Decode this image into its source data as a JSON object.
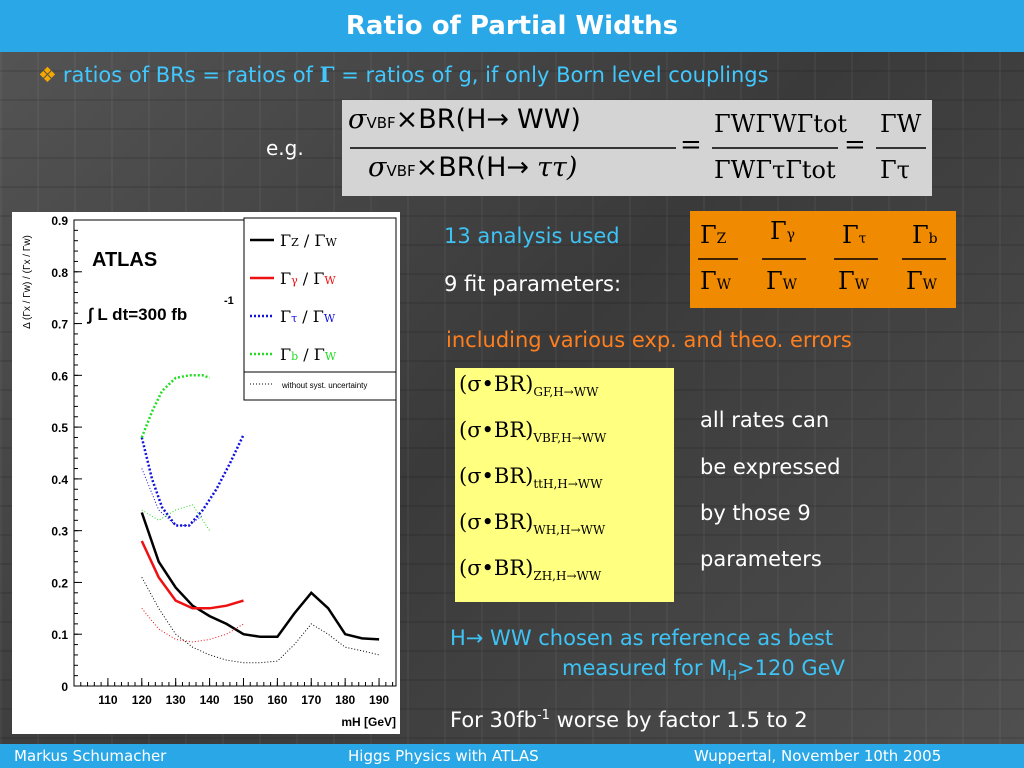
{
  "title": "Ratio of Partial Widths",
  "bullet": {
    "text_a": "ratios of BRs  = ratios of ",
    "gamma": "Γ",
    "text_b": " = ratios of g, if only Born level couplings"
  },
  "eg": "e.g.",
  "formula": {
    "num_sigma": "σ",
    "num_sub": "VBF",
    "num_rest": "×BR(H",
    "arrow": "→",
    "num_ww": "WW)",
    "den_sigma": "σ",
    "den_sub": "VBF",
    "den_rest": "×BR(H",
    "den_tautau": "ττ)",
    "mid_num": "ΓWΓWΓtot",
    "mid_den": "ΓWΓτΓtot",
    "right_num": "ΓW",
    "right_den": "Γτ",
    "eq": "="
  },
  "analysis": "13 analysis used",
  "fit_params": "9 fit parameters:",
  "ratios": [
    {
      "num": "Γ",
      "num_sub": "Z",
      "den": "Γ",
      "den_sub": "W"
    },
    {
      "num": "Γ",
      "num_sub": "γ",
      "den": "Γ",
      "den_sub": "W"
    },
    {
      "num": "Γ",
      "num_sub": "τ",
      "den": "Γ",
      "den_sub": "W"
    },
    {
      "num": "Γ",
      "num_sub": "b",
      "den": "Γ",
      "den_sub": "W"
    }
  ],
  "errors": "including various exp. and theo. errors",
  "rates": [
    {
      "main": "(σ•BR)",
      "sub": "GF,H→WW"
    },
    {
      "main": "(σ•BR)",
      "sub": "VBF,H→WW"
    },
    {
      "main": "(σ•BR)",
      "sub": "ttH,H→WW"
    },
    {
      "main": "(σ•BR)",
      "sub": "WH,H→WW"
    },
    {
      "main": "(σ•BR)",
      "sub": "ZH,H→WW"
    }
  ],
  "rates_text": [
    "all rates can",
    "be expressed",
    "by  those 9",
    "parameters"
  ],
  "reference": {
    "line1": "H→ WW chosen as reference as best",
    "line2_a": "measured for M",
    "line2_sub": "H",
    "line2_b": ">120 GeV"
  },
  "worse": {
    "a": "For 30fb",
    "sup": "-1",
    "b": " worse by factor 1.5 to 2"
  },
  "footer": {
    "left": "Markus  Schumacher",
    "center": "Higgs Physics  with ATLAS",
    "right": "Wuppertal, November 10th 2005"
  },
  "colors": {
    "accent": "#2aa7e6",
    "cyan_text": "#3ec3f5",
    "orange": "#f08a00",
    "yellow": "#ffff80"
  },
  "chart_data": {
    "type": "line",
    "title": "",
    "xlabel": "mH [GeV]",
    "ylabel": "Δ (Γx / Γw) / (Γx / Γw)",
    "xlim": [
      100,
      195
    ],
    "ylim": [
      0,
      0.9
    ],
    "xticks": [
      "110",
      "120",
      "130",
      "140",
      "150",
      "160",
      "170",
      "180",
      "190"
    ],
    "yticks": [
      "0",
      "0.1",
      "0.2",
      "0.3",
      "0.4",
      "0.5",
      "0.6",
      "0.7",
      "0.8",
      "0.9"
    ],
    "annotation_experiment": "ATLAS",
    "annotation_lumi": "∫ L dt=300 fb",
    "annotation_lumi_sup": "-1",
    "legend": [
      {
        "num": "Γ",
        "ns": "Z",
        "den": "Γ",
        "ds": "W",
        "color": "#000000",
        "style": "solid"
      },
      {
        "num": "Γ",
        "ns": "γ",
        "den": "Γ",
        "ds": "W",
        "color": "#ee1111",
        "style": "solid"
      },
      {
        "num": "Γ",
        "ns": "τ",
        "den": "Γ",
        "ds": "W",
        "color": "#1111dd",
        "style": "dotted"
      },
      {
        "num": "Γ",
        "ns": "b",
        "den": "Γ",
        "ds": "W",
        "color": "#22dd22",
        "style": "dotted"
      }
    ],
    "legend_note": "without syst. uncertainty",
    "series": [
      {
        "name": "ΓZ/ΓW",
        "color": "#000000",
        "dash": "",
        "width": 2.5,
        "x": [
          120,
          125,
          130,
          135,
          140,
          145,
          150,
          155,
          160,
          165,
          170,
          175,
          180,
          185,
          190
        ],
        "y": [
          0.335,
          0.24,
          0.19,
          0.155,
          0.135,
          0.12,
          0.1,
          0.095,
          0.095,
          0.14,
          0.18,
          0.15,
          0.1,
          0.092,
          0.09
        ]
      },
      {
        "name": "ΓZ/ΓW syst-free",
        "color": "#000000",
        "dash": "1,2",
        "width": 1,
        "x": [
          120,
          125,
          130,
          135,
          140,
          145,
          150,
          155,
          160,
          165,
          170,
          175,
          180,
          185,
          190
        ],
        "y": [
          0.21,
          0.15,
          0.1,
          0.075,
          0.06,
          0.05,
          0.045,
          0.045,
          0.048,
          0.08,
          0.12,
          0.1,
          0.075,
          0.068,
          0.06
        ]
      },
      {
        "name": "Γγ/ΓW",
        "color": "#ee1111",
        "dash": "",
        "width": 2.5,
        "x": [
          120,
          125,
          130,
          135,
          140,
          145,
          150
        ],
        "y": [
          0.28,
          0.21,
          0.165,
          0.15,
          0.15,
          0.155,
          0.165
        ]
      },
      {
        "name": "Γγ/ΓW syst-free",
        "color": "#ee1111",
        "dash": "1,2",
        "width": 1,
        "x": [
          120,
          125,
          130,
          135,
          140,
          145,
          150
        ],
        "y": [
          0.15,
          0.11,
          0.09,
          0.085,
          0.09,
          0.1,
          0.12
        ]
      },
      {
        "name": "Γτ/ΓW",
        "color": "#1111dd",
        "dash": "2,2",
        "width": 2.5,
        "x": [
          120,
          123,
          126,
          130,
          134,
          138,
          142,
          146,
          150
        ],
        "y": [
          0.48,
          0.4,
          0.345,
          0.31,
          0.31,
          0.34,
          0.38,
          0.43,
          0.485
        ]
      },
      {
        "name": "Γτ/ΓW syst-free",
        "color": "#1111dd",
        "dash": "1,2",
        "width": 1,
        "x": [
          120,
          125,
          130,
          134,
          138
        ],
        "y": [
          0.42,
          0.34,
          0.31,
          0.31,
          0.33
        ]
      },
      {
        "name": "Γb/ΓW",
        "color": "#22dd22",
        "dash": "2,2",
        "width": 2.5,
        "x": [
          120,
          123,
          126,
          130,
          134,
          138,
          140
        ],
        "y": [
          0.48,
          0.53,
          0.57,
          0.595,
          0.6,
          0.6,
          0.595
        ]
      },
      {
        "name": "Γb/ΓW syst-free",
        "color": "#22dd22",
        "dash": "1,2",
        "width": 1,
        "x": [
          120,
          125,
          130,
          135,
          140
        ],
        "y": [
          0.34,
          0.32,
          0.34,
          0.35,
          0.3
        ]
      }
    ]
  }
}
